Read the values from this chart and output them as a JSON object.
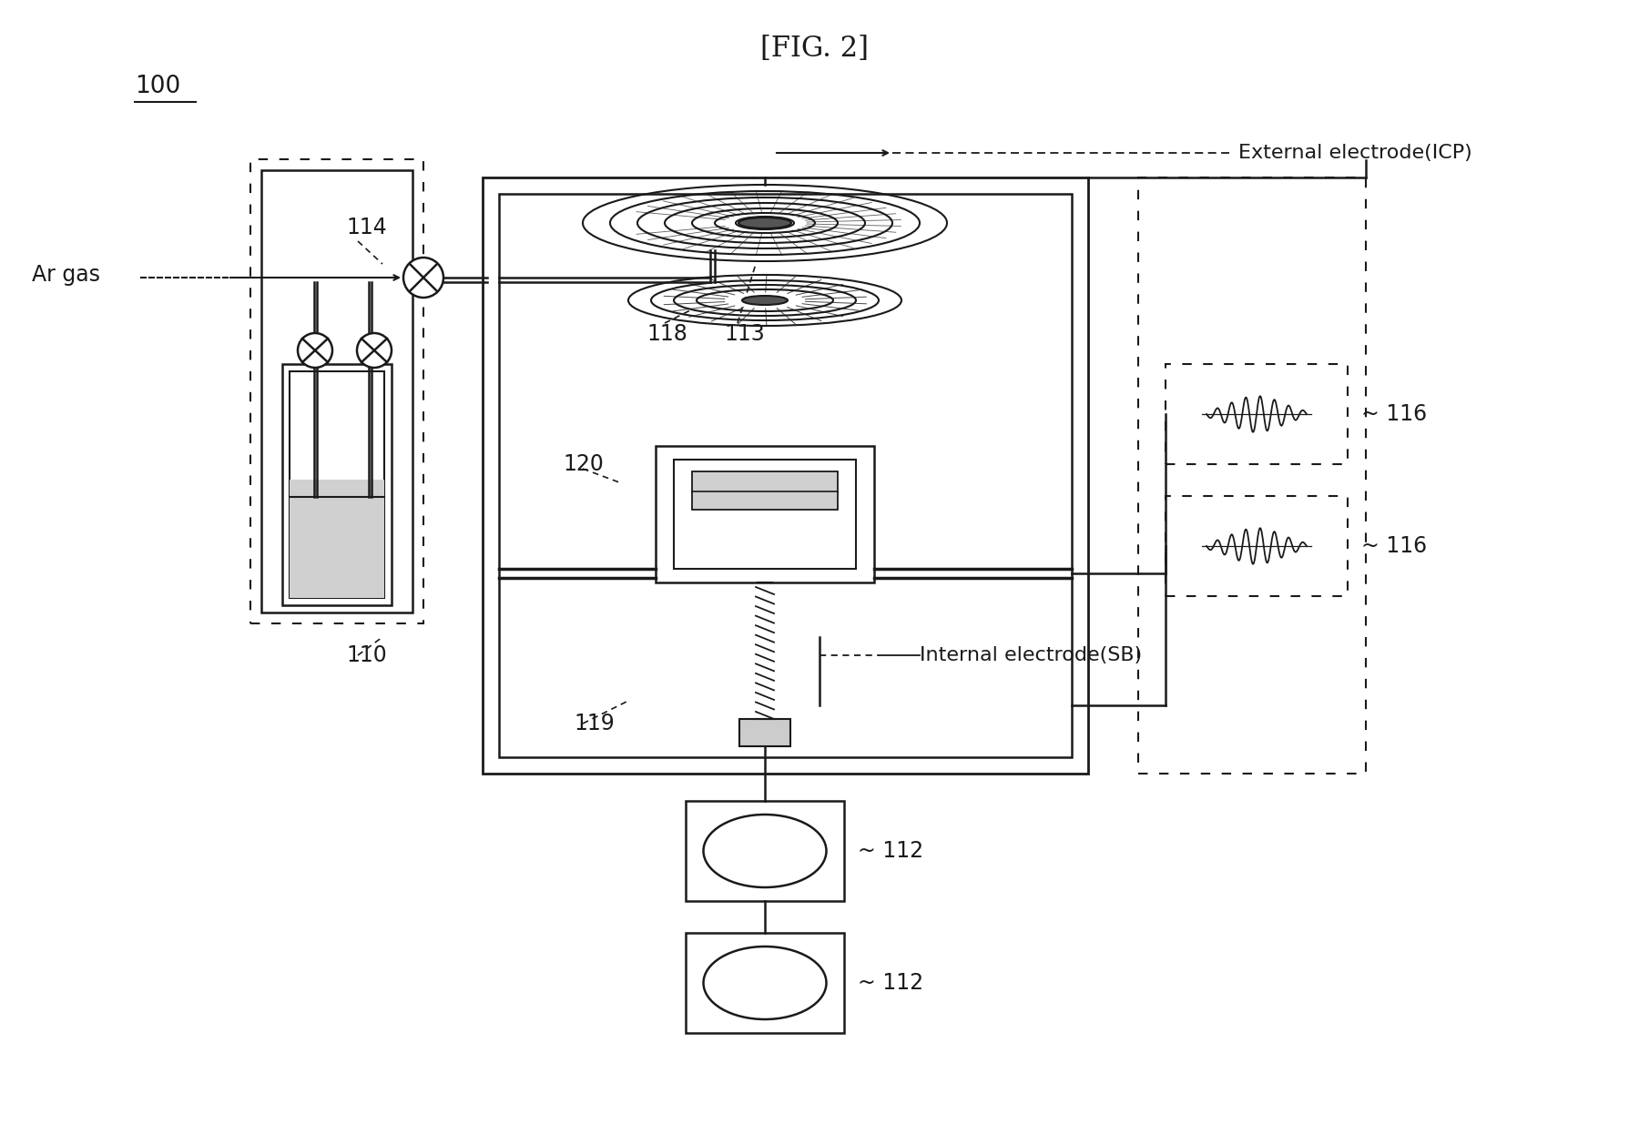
{
  "title": "[FIG. 2]",
  "bg_color": "#ffffff",
  "label_100": "100",
  "label_114": "114",
  "label_118": "118",
  "label_113": "113",
  "label_120": "120",
  "label_110": "110",
  "label_119": "119",
  "label_116": "116",
  "label_112": "112",
  "text_ar_gas": "Ar gas",
  "text_external": "External electrode(ICP)",
  "text_internal": "Internal electrode(SB)"
}
